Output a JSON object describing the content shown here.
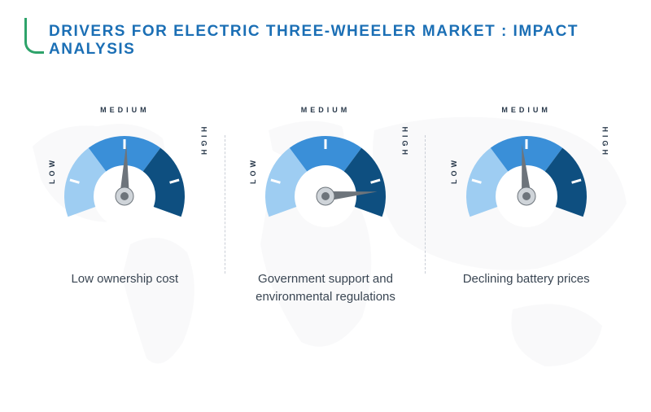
{
  "title": "DRIVERS FOR ELECTRIC THREE-WHEELER MARKET : IMPACT ANALYSIS",
  "title_color": "#1b6fb5",
  "accent_color": "#2ea36a",
  "background_color": "#ffffff",
  "map_fill": "#b7c0cb",
  "divider_color": "#c9ced6",
  "scale_labels": {
    "low": "LOW",
    "medium": "MEDIUM",
    "high": "HIGH"
  },
  "gauge_style": {
    "outer_radius": 74,
    "inner_radius": 38,
    "segment_colors": {
      "low": "#9ecdf2",
      "medium": "#3a8fd8",
      "high": "#0e4f80"
    },
    "tick_color": "#ffffff",
    "center_fill": "#ffffff",
    "needle_body": "#cfd4d9",
    "needle_dark": "#6d747b",
    "start_angle": 200,
    "end_angle": -20,
    "label_fontsize": 9,
    "label_letter_spacing": 4,
    "label_color": "#28384a",
    "caption_fontsize": 15,
    "caption_color": "#3a4653"
  },
  "gauges": [
    {
      "caption": "Low ownership cost",
      "needle_angle_deg": 88
    },
    {
      "caption": "Government support and environmental regulations",
      "needle_angle_deg": 5
    },
    {
      "caption": "Declining battery prices",
      "needle_angle_deg": 95
    }
  ]
}
